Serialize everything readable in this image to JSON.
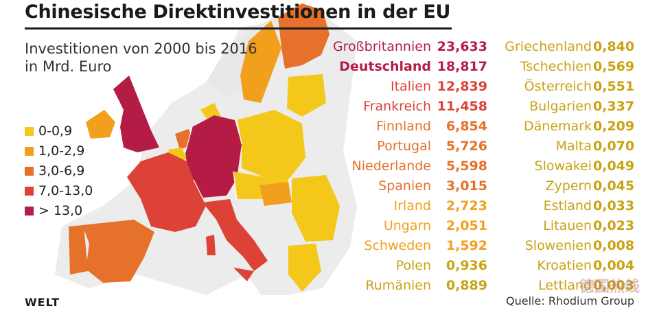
{
  "title": "Chinesische Direktinvestitionen in der EU",
  "subtitle": [
    "Investitionen von 2000 bis 2016",
    "in Mrd. Euro"
  ],
  "legend": [
    {
      "label": "0-0,9",
      "color": "#f3c81a"
    },
    {
      "label": "1,0-2,9",
      "color": "#f29f1d"
    },
    {
      "label": "3,0-6,9",
      "color": "#e6712b"
    },
    {
      "label": "7,0-13,0",
      "color": "#dc4336"
    },
    {
      "label": "> 13,0",
      "color": "#b41c46"
    }
  ],
  "countries_left": [
    {
      "name": "Großbritannien",
      "value": "23,633",
      "color": "#b41c46",
      "bold": false
    },
    {
      "name": "Deutschland",
      "value": "18,817",
      "color": "#b41c46",
      "bold": true
    },
    {
      "name": "Italien",
      "value": "12,839",
      "color": "#dc4336",
      "bold": false
    },
    {
      "name": "Frankreich",
      "value": "11,458",
      "color": "#dc4336",
      "bold": false
    },
    {
      "name": "Finnland",
      "value": "6,854",
      "color": "#e6712b",
      "bold": false
    },
    {
      "name": "Portugal",
      "value": "5,726",
      "color": "#e6712b",
      "bold": false
    },
    {
      "name": "Niederlande",
      "value": "5,598",
      "color": "#e6712b",
      "bold": false
    },
    {
      "name": "Spanien",
      "value": "3,015",
      "color": "#e6712b",
      "bold": false
    },
    {
      "name": "Irland",
      "value": "2,723",
      "color": "#f29f1d",
      "bold": false
    },
    {
      "name": "Ungarn",
      "value": "2,051",
      "color": "#f29f1d",
      "bold": false
    },
    {
      "name": "Schweden",
      "value": "1,592",
      "color": "#f29f1d",
      "bold": false
    },
    {
      "name": "Polen",
      "value": "0,936",
      "color": "#c8a313",
      "bold": false
    },
    {
      "name": "Rumänien",
      "value": "0,889",
      "color": "#c8a313",
      "bold": false
    }
  ],
  "countries_right": [
    {
      "name": "Griechenland",
      "value": "0,840"
    },
    {
      "name": "Tschechien",
      "value": "0,569"
    },
    {
      "name": "Österreich",
      "value": "0,551"
    },
    {
      "name": "Bulgarien",
      "value": "0,337"
    },
    {
      "name": "Dänemark",
      "value": "0,209"
    },
    {
      "name": "Malta",
      "value": "0,070"
    },
    {
      "name": "Slowakei",
      "value": "0,049"
    },
    {
      "name": "Zypern",
      "value": "0,045"
    },
    {
      "name": "Estland",
      "value": "0,033"
    },
    {
      "name": "Litauen",
      "value": "0,023"
    },
    {
      "name": "Slowenien",
      "value": "0,008"
    },
    {
      "name": "Kroatien",
      "value": "0,004"
    },
    {
      "name": "Lettland",
      "value": "0,003"
    }
  ],
  "right_color": "#c8a313",
  "brand": "WELT",
  "source": "Quelle: Rhodium Group"
}
